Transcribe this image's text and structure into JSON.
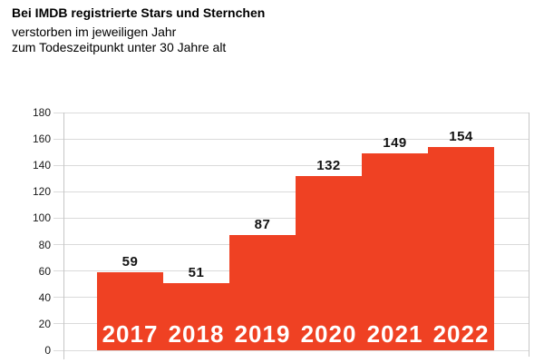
{
  "header": {
    "title": "Bei IMDB registrierte Stars und Sternchen",
    "subtitle1": "verstorben im jeweiligen Jahr",
    "subtitle2": "zum Todeszeitpunkt unter 30 Jahre alt"
  },
  "chart_data": {
    "type": "bar",
    "title": "Bei IMDB registrierte Stars und Sternchen",
    "subtitle": [
      "verstorben im jeweiligen Jahr",
      "zum Todeszeitpunkt unter 30 Jahre alt"
    ],
    "categories": [
      "2017",
      "2018",
      "2019",
      "2020",
      "2021",
      "2022"
    ],
    "values": [
      59,
      51,
      87,
      132,
      149,
      154
    ],
    "xlabel": "",
    "ylabel": "",
    "ylim": [
      0,
      180
    ],
    "yticks": [
      0,
      20,
      40,
      60,
      80,
      100,
      120,
      140,
      160,
      180
    ],
    "grid": true,
    "legend": false,
    "value_labels_position": "above-bar",
    "category_label_position": "inside-bar-bottom"
  },
  "colors": {
    "bar": "#EF4123",
    "grid": "#DADADA",
    "axis": "#C6C6C6",
    "value_label": "#141414",
    "category_label": "#FFFFFF",
    "tick_label": "#1A1A1A"
  }
}
